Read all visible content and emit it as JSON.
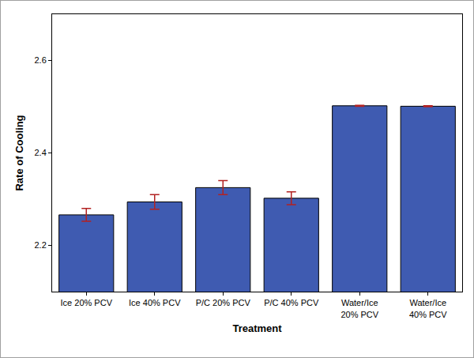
{
  "chart_data": {
    "type": "bar",
    "x_label": "Treatment",
    "y_label": "Rate of Cooling",
    "categories": [
      "Ice 20% PCV",
      "Ice 40% PCV",
      "P/C 20% PCV",
      "P/C 40% PCV",
      "Water/Ice 20% PCV",
      "Water/Ice 40% PCV"
    ],
    "values": [
      2.266,
      2.294,
      2.325,
      2.302,
      2.502,
      2.501
    ],
    "errors": [
      0.014,
      0.016,
      0.015,
      0.014,
      0.001,
      0.001
    ],
    "color": "#3f5bb1",
    "ylim": [
      2.1,
      2.7
    ],
    "yticks": [
      2.2,
      2.4,
      2.6
    ],
    "grid": false
  }
}
